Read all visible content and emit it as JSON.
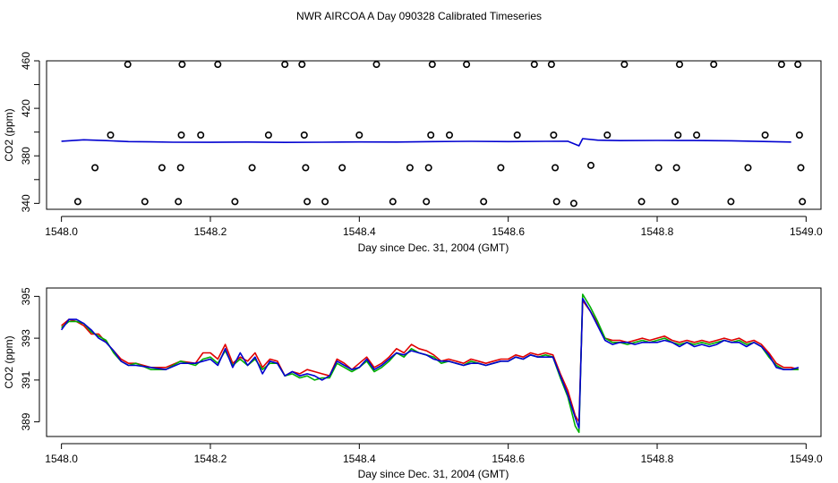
{
  "title": "NWR AIRCOA A  Day 090328  Calibrated Timeseries",
  "colors": {
    "red": "#e00000",
    "green": "#00b000",
    "blue": "#0000d0",
    "axis": "#000000"
  },
  "chart_data": [
    {
      "type": "line+scatter",
      "xlabel": "Day since Dec. 31, 2004 (GMT)",
      "ylabel": "CO2 (ppm)",
      "xlim": [
        1547.98,
        1549.02
      ],
      "ylim": [
        335,
        460
      ],
      "xticks": [
        1548.0,
        1548.2,
        1548.4,
        1548.6,
        1548.8,
        1549.0
      ],
      "xtick_labels": [
        "1548.0",
        "1548.2",
        "1548.4",
        "1548.6",
        "1548.8",
        "1549.0"
      ],
      "yticks": [
        340,
        360,
        380,
        400,
        420,
        440,
        460
      ],
      "ytick_labels": [
        "340",
        "",
        "380",
        "",
        "420",
        "",
        "460"
      ],
      "points": [
        [
          1548.022,
          341.5
        ],
        [
          1548.045,
          370
        ],
        [
          1548.066,
          397.5
        ],
        [
          1548.089,
          457
        ],
        [
          1548.112,
          341.5
        ],
        [
          1548.135,
          370
        ],
        [
          1548.157,
          341.5
        ],
        [
          1548.16,
          370
        ],
        [
          1548.161,
          397.5
        ],
        [
          1548.162,
          457
        ],
        [
          1548.187,
          397.5
        ],
        [
          1548.21,
          457
        ],
        [
          1548.233,
          341.5
        ],
        [
          1548.256,
          370
        ],
        [
          1548.278,
          397.5
        ],
        [
          1548.3,
          457
        ],
        [
          1548.323,
          457
        ],
        [
          1548.326,
          397.5
        ],
        [
          1548.328,
          370
        ],
        [
          1548.33,
          341.5
        ],
        [
          1548.354,
          341.5
        ],
        [
          1548.377,
          370
        ],
        [
          1548.4,
          397.5
        ],
        [
          1548.423,
          457
        ],
        [
          1548.445,
          341.5
        ],
        [
          1548.468,
          370
        ],
        [
          1548.49,
          341.5
        ],
        [
          1548.493,
          370
        ],
        [
          1548.496,
          397.5
        ],
        [
          1548.498,
          457
        ],
        [
          1548.521,
          397.5
        ],
        [
          1548.544,
          457
        ],
        [
          1548.567,
          341.5
        ],
        [
          1548.59,
          370
        ],
        [
          1548.612,
          397.5
        ],
        [
          1548.635,
          457
        ],
        [
          1548.658,
          457
        ],
        [
          1548.661,
          397.5
        ],
        [
          1548.663,
          370
        ],
        [
          1548.665,
          341.5
        ],
        [
          1548.688,
          340
        ],
        [
          1548.711,
          372
        ],
        [
          1548.733,
          397.5
        ],
        [
          1548.756,
          457
        ],
        [
          1548.779,
          341.5
        ],
        [
          1548.802,
          370
        ],
        [
          1548.824,
          341.5
        ],
        [
          1548.826,
          370
        ],
        [
          1548.828,
          397.5
        ],
        [
          1548.83,
          457
        ],
        [
          1548.853,
          397.5
        ],
        [
          1548.876,
          457
        ],
        [
          1548.899,
          341.5
        ],
        [
          1548.922,
          370
        ],
        [
          1548.945,
          397.5
        ],
        [
          1548.967,
          457
        ],
        [
          1548.989,
          457
        ],
        [
          1548.991,
          397.5
        ],
        [
          1548.993,
          370
        ],
        [
          1548.995,
          341.5
        ]
      ],
      "series": [
        {
          "name": "blue",
          "color": "#0000d0",
          "x": [
            1548.0,
            1548.03,
            1548.06,
            1548.09,
            1548.12,
            1548.15,
            1548.2,
            1548.25,
            1548.3,
            1548.35,
            1548.4,
            1548.45,
            1548.5,
            1548.55,
            1548.6,
            1548.65,
            1548.68,
            1548.695,
            1548.7,
            1548.72,
            1548.75,
            1548.8,
            1548.85,
            1548.9,
            1548.95,
            1548.98
          ],
          "y": [
            392.3,
            393.5,
            392.8,
            392,
            391.8,
            391.5,
            391.4,
            391.6,
            391.3,
            391.5,
            391.7,
            391.6,
            392,
            392.2,
            392,
            392.2,
            392.3,
            388.5,
            394.5,
            393.2,
            392.8,
            393,
            392.9,
            392.7,
            392,
            391.6
          ]
        }
      ]
    },
    {
      "type": "line",
      "xlabel": "Day since Dec. 31, 2004 (GMT)",
      "ylabel": "CO2 (ppm)",
      "xlim": [
        1547.98,
        1549.02
      ],
      "ylim": [
        388.3,
        395.4
      ],
      "xticks": [
        1548.0,
        1548.2,
        1548.4,
        1548.6,
        1548.8,
        1549.0
      ],
      "xtick_labels": [
        "1548.0",
        "1548.2",
        "1548.4",
        "1548.6",
        "1548.8",
        "1549.0"
      ],
      "yticks": [
        389,
        391,
        393,
        395
      ],
      "ytick_labels": [
        "389",
        "391",
        "393",
        "395"
      ],
      "series": [
        {
          "name": "red",
          "color": "#e00000",
          "x": [
            1548.0,
            1548.01,
            1548.02,
            1548.03,
            1548.04,
            1548.05,
            1548.06,
            1548.07,
            1548.08,
            1548.09,
            1548.1,
            1548.12,
            1548.14,
            1548.16,
            1548.18,
            1548.19,
            1548.2,
            1548.21,
            1548.22,
            1548.23,
            1548.24,
            1548.25,
            1548.26,
            1548.27,
            1548.28,
            1548.29,
            1548.3,
            1548.31,
            1548.32,
            1548.33,
            1548.34,
            1548.35,
            1548.36,
            1548.37,
            1548.38,
            1548.39,
            1548.4,
            1548.41,
            1548.42,
            1548.43,
            1548.44,
            1548.45,
            1548.46,
            1548.47,
            1548.48,
            1548.49,
            1548.5,
            1548.51,
            1548.52,
            1548.53,
            1548.54,
            1548.55,
            1548.56,
            1548.57,
            1548.58,
            1548.59,
            1548.6,
            1548.61,
            1548.62,
            1548.63,
            1548.64,
            1548.65,
            1548.66,
            1548.67,
            1548.68,
            1548.69,
            1548.695,
            1548.7,
            1548.71,
            1548.72,
            1548.73,
            1548.74,
            1548.75,
            1548.76,
            1548.77,
            1548.78,
            1548.79,
            1548.8,
            1548.81,
            1548.82,
            1548.83,
            1548.84,
            1548.85,
            1548.86,
            1548.87,
            1548.88,
            1548.89,
            1548.9,
            1548.91,
            1548.92,
            1548.93,
            1548.94,
            1548.95,
            1548.96,
            1548.97,
            1548.98,
            1548.99
          ],
          "y": [
            393.6,
            393.9,
            393.8,
            393.6,
            393.2,
            393.2,
            392.8,
            392.4,
            392,
            391.8,
            391.8,
            391.6,
            391.6,
            391.9,
            391.8,
            392.3,
            392.3,
            392.0,
            392.7,
            391.8,
            392.1,
            391.9,
            392.3,
            391.6,
            392.0,
            391.9,
            391.2,
            391.4,
            391.3,
            391.5,
            391.4,
            391.3,
            391.2,
            392.0,
            391.8,
            391.5,
            391.8,
            392.1,
            391.6,
            391.8,
            392.1,
            392.5,
            392.3,
            392.7,
            392.5,
            392.4,
            392.2,
            391.9,
            392.0,
            391.9,
            391.8,
            392.0,
            391.9,
            391.8,
            391.9,
            392.0,
            392.0,
            392.2,
            392.1,
            392.3,
            392.2,
            392.3,
            392.2,
            391.3,
            390.5,
            389.3,
            389.0,
            394.8,
            394.3,
            393.7,
            393.0,
            392.9,
            392.9,
            392.8,
            392.9,
            393.0,
            392.9,
            393.0,
            393.1,
            392.9,
            392.8,
            392.9,
            392.8,
            392.9,
            392.8,
            392.9,
            393.0,
            392.9,
            393.0,
            392.8,
            392.9,
            392.7,
            392.3,
            391.8,
            391.6,
            391.6,
            391.5
          ]
        },
        {
          "name": "green",
          "color": "#00b000",
          "x": [
            1548.0,
            1548.01,
            1548.02,
            1548.03,
            1548.04,
            1548.05,
            1548.06,
            1548.07,
            1548.08,
            1548.09,
            1548.1,
            1548.12,
            1548.14,
            1548.16,
            1548.18,
            1548.19,
            1548.2,
            1548.21,
            1548.22,
            1548.23,
            1548.24,
            1548.25,
            1548.26,
            1548.27,
            1548.28,
            1548.29,
            1548.3,
            1548.31,
            1548.32,
            1548.33,
            1548.34,
            1548.35,
            1548.36,
            1548.37,
            1548.38,
            1548.39,
            1548.4,
            1548.41,
            1548.42,
            1548.43,
            1548.44,
            1548.45,
            1548.46,
            1548.47,
            1548.48,
            1548.49,
            1548.5,
            1548.51,
            1548.52,
            1548.53,
            1548.54,
            1548.55,
            1548.56,
            1548.57,
            1548.58,
            1548.59,
            1548.6,
            1548.61,
            1548.62,
            1548.63,
            1548.64,
            1548.65,
            1548.66,
            1548.67,
            1548.68,
            1548.69,
            1548.695,
            1548.7,
            1548.71,
            1548.72,
            1548.73,
            1548.74,
            1548.75,
            1548.76,
            1548.77,
            1548.78,
            1548.79,
            1548.8,
            1548.81,
            1548.82,
            1548.83,
            1548.84,
            1548.85,
            1548.86,
            1548.87,
            1548.88,
            1548.89,
            1548.9,
            1548.91,
            1548.92,
            1548.93,
            1548.94,
            1548.95,
            1548.96,
            1548.97,
            1548.98,
            1548.99
          ],
          "y": [
            393.5,
            393.8,
            393.8,
            393.7,
            393.3,
            393.1,
            392.9,
            392.3,
            391.9,
            391.7,
            391.8,
            391.5,
            391.5,
            391.9,
            391.7,
            392.0,
            392.1,
            391.8,
            392.4,
            391.7,
            392.0,
            391.7,
            392.0,
            391.5,
            391.8,
            391.8,
            391.2,
            391.3,
            391.1,
            391.2,
            391.0,
            391.1,
            391.1,
            391.8,
            391.6,
            391.4,
            391.6,
            391.9,
            391.4,
            391.6,
            391.9,
            392.3,
            392.1,
            392.5,
            392.3,
            392.2,
            392.1,
            391.8,
            391.9,
            391.8,
            391.7,
            391.9,
            391.8,
            391.7,
            391.8,
            391.9,
            391.9,
            392.1,
            392.0,
            392.2,
            392.1,
            392.2,
            392.1,
            391.1,
            390.2,
            388.8,
            388.5,
            395.1,
            394.5,
            393.8,
            393.0,
            392.8,
            392.8,
            392.7,
            392.8,
            392.9,
            392.8,
            392.9,
            393.0,
            392.8,
            392.7,
            392.8,
            392.7,
            392.8,
            392.7,
            392.8,
            392.9,
            392.8,
            392.9,
            392.7,
            392.8,
            392.6,
            392.1,
            391.7,
            391.5,
            391.5,
            391.5
          ]
        },
        {
          "name": "blue",
          "color": "#0000d0",
          "x": [
            1548.0,
            1548.01,
            1548.02,
            1548.03,
            1548.04,
            1548.05,
            1548.06,
            1548.07,
            1548.08,
            1548.09,
            1548.1,
            1548.12,
            1548.14,
            1548.16,
            1548.18,
            1548.19,
            1548.2,
            1548.21,
            1548.22,
            1548.23,
            1548.24,
            1548.25,
            1548.26,
            1548.27,
            1548.28,
            1548.29,
            1548.3,
            1548.31,
            1548.32,
            1548.33,
            1548.34,
            1548.35,
            1548.36,
            1548.37,
            1548.38,
            1548.39,
            1548.4,
            1548.41,
            1548.42,
            1548.43,
            1548.44,
            1548.45,
            1548.46,
            1548.47,
            1548.48,
            1548.49,
            1548.5,
            1548.51,
            1548.52,
            1548.53,
            1548.54,
            1548.55,
            1548.56,
            1548.57,
            1548.58,
            1548.59,
            1548.6,
            1548.61,
            1548.62,
            1548.63,
            1548.64,
            1548.65,
            1548.66,
            1548.67,
            1548.68,
            1548.69,
            1548.695,
            1548.7,
            1548.71,
            1548.72,
            1548.73,
            1548.74,
            1548.75,
            1548.76,
            1548.77,
            1548.78,
            1548.79,
            1548.8,
            1548.81,
            1548.82,
            1548.83,
            1548.84,
            1548.85,
            1548.86,
            1548.87,
            1548.88,
            1548.89,
            1548.9,
            1548.91,
            1548.92,
            1548.93,
            1548.94,
            1548.95,
            1548.96,
            1548.97,
            1548.98,
            1548.99
          ],
          "y": [
            393.4,
            393.9,
            393.9,
            393.7,
            393.4,
            393.0,
            392.8,
            392.4,
            391.9,
            391.7,
            391.7,
            391.6,
            391.5,
            391.8,
            391.8,
            391.9,
            392.0,
            391.7,
            392.5,
            391.6,
            392.3,
            391.7,
            392.1,
            391.3,
            391.9,
            391.8,
            391.2,
            391.4,
            391.2,
            391.3,
            391.2,
            391.0,
            391.2,
            391.9,
            391.7,
            391.5,
            391.6,
            392.0,
            391.5,
            391.7,
            392.0,
            392.3,
            392.2,
            392.4,
            392.3,
            392.2,
            392.0,
            391.9,
            391.9,
            391.8,
            391.7,
            391.8,
            391.8,
            391.7,
            391.8,
            391.9,
            391.9,
            392.1,
            392.0,
            392.2,
            392.1,
            392.1,
            392.1,
            391.2,
            390.3,
            389.2,
            388.7,
            394.9,
            394.3,
            393.6,
            392.9,
            392.7,
            392.8,
            392.8,
            392.7,
            392.8,
            392.8,
            392.8,
            392.9,
            392.8,
            392.6,
            392.8,
            392.6,
            392.7,
            392.6,
            392.7,
            392.9,
            392.8,
            392.8,
            392.6,
            392.8,
            392.6,
            392.2,
            391.6,
            391.5,
            391.5,
            391.6
          ]
        }
      ]
    }
  ]
}
